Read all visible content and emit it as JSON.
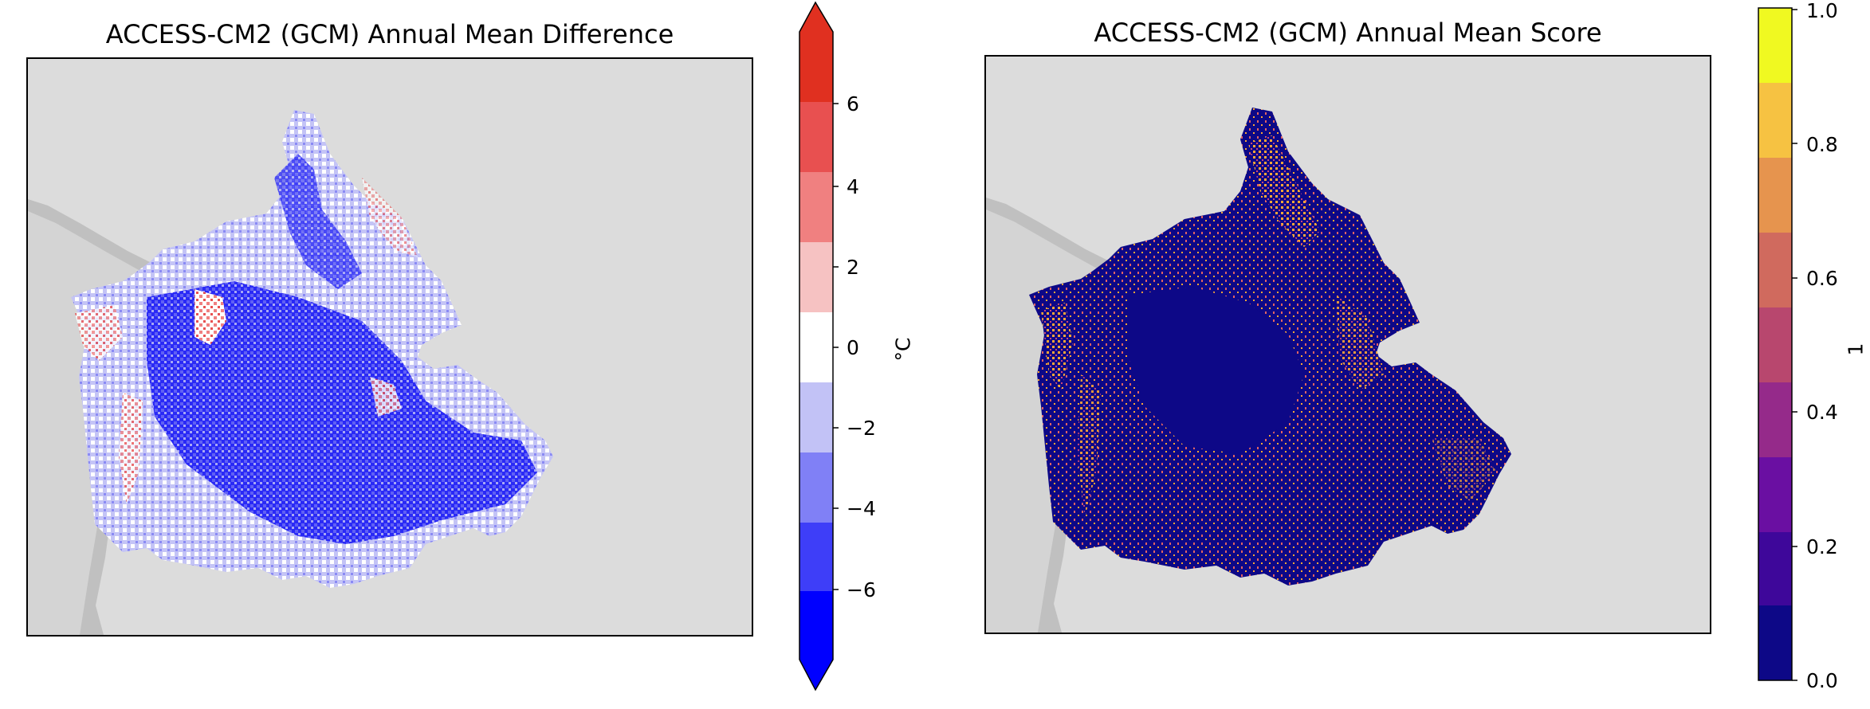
{
  "panels": [
    {
      "title": "ACCESS-CM2 (GCM) Annual Mean Difference",
      "colorbar": {
        "label": "°C",
        "ticks": [
          "6",
          "4",
          "2",
          "0",
          "−2",
          "−4",
          "−6"
        ],
        "tick_values": [
          6,
          4,
          2,
          0,
          -2,
          -4,
          -6
        ],
        "range": [
          -8,
          8
        ],
        "extend": "both",
        "colors": [
          "#0000ff",
          "#3e3ef8",
          "#8080f6",
          "#c2c2f6",
          "#ffffff",
          "#f6c2c2",
          "#f08080",
          "#e85050",
          "#e03020"
        ]
      }
    },
    {
      "title": "ACCESS-CM2 (GCM) Annual Mean Score",
      "colorbar": {
        "label": "1",
        "ticks": [
          "1.0",
          "0.8",
          "0.6",
          "0.4",
          "0.2",
          "0.0"
        ],
        "tick_values": [
          1.0,
          0.8,
          0.6,
          0.4,
          0.2,
          0.0
        ],
        "range": [
          0,
          1
        ],
        "extend": "neither",
        "colors": [
          "#0d0887",
          "#41049d",
          "#6a00a8",
          "#8f0da4",
          "#b12a90",
          "#cc4778",
          "#e16462",
          "#f2844b",
          "#fca636",
          "#f0f921"
        ]
      }
    }
  ],
  "colors": {
    "background": "#dcdcdc",
    "land_outside": "#c0c0c0",
    "ocean": "#bdbdbd"
  }
}
